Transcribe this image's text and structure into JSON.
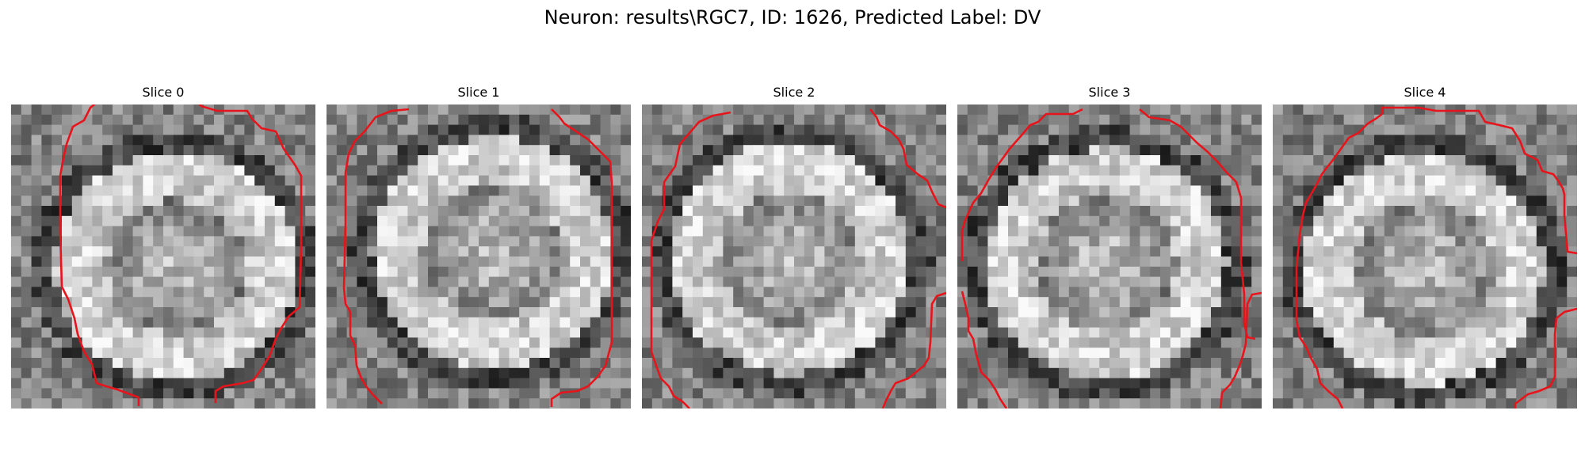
{
  "figure": {
    "title": "Neuron: results\\RGC7, ID: 1626, Predicted Label: DV"
  },
  "panels": [
    {
      "title": "Slice 0",
      "outline_color": "#e8141b"
    },
    {
      "title": "Slice 1",
      "outline_color": "#e8141b"
    },
    {
      "title": "Slice 2",
      "outline_color": "#e8141b"
    },
    {
      "title": "Slice 3",
      "outline_color": "#e8141b"
    },
    {
      "title": "Slice 4",
      "outline_color": "#e8141b"
    }
  ]
}
